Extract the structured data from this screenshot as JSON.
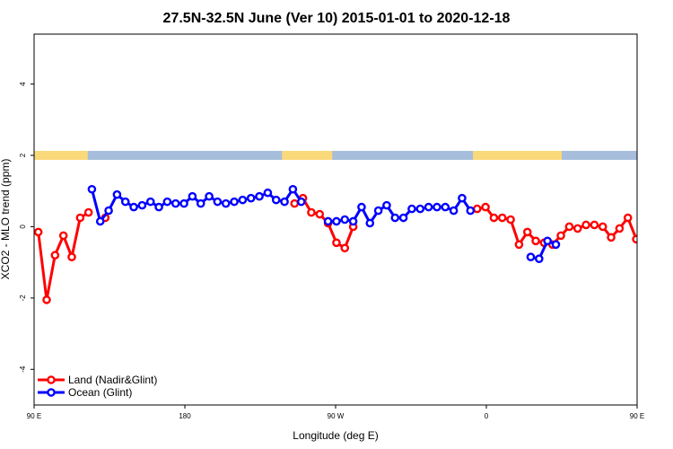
{
  "chart_data": {
    "type": "line",
    "title": "27.5N-32.5N June (Ver 10)   2015-01-01 to 2020-12-18",
    "xlabel": "Longitude (deg E)",
    "ylabel": "XCO2 - MLO trend (ppm)",
    "xlim": [
      90,
      450
    ],
    "ylim": [
      -5,
      5.4
    ],
    "x_ticks": [
      {
        "value": 90,
        "label": "90 E"
      },
      {
        "value": 180,
        "label": "180"
      },
      {
        "value": 270,
        "label": "90 W"
      },
      {
        "value": 360,
        "label": "0"
      },
      {
        "value": 450,
        "label": "90 E"
      },
      {
        "value": 540,
        "label": "180"
      }
    ],
    "y_ticks": [
      {
        "value": -4,
        "label": "-4"
      },
      {
        "value": -2,
        "label": "-2"
      },
      {
        "value": 0,
        "label": "0"
      },
      {
        "value": 2,
        "label": "2"
      },
      {
        "value": 4,
        "label": "4"
      }
    ],
    "grid": false,
    "legend_position": "bottom-left",
    "land_ocean_band": {
      "y_center": 2.0,
      "land_color": "#fad97a",
      "ocean_color": "#a6bddb",
      "land_ranges": [
        [
          90,
          122
        ],
        [
          238,
          268
        ],
        [
          352,
          405
        ],
        [
          467,
          492
        ]
      ]
    },
    "series": [
      {
        "name": "Land (Nadir&Glint)",
        "color": "#ff0000",
        "points": [
          [
            92.5,
            -0.15
          ],
          [
            97.5,
            -2.05
          ],
          [
            102.5,
            -0.8
          ],
          [
            107.5,
            -0.25
          ],
          [
            112.5,
            -0.85
          ],
          [
            117.5,
            0.25
          ],
          [
            122.5,
            0.4
          ],
          null,
          [
            132.5,
            0.25
          ],
          null,
          [
            245.5,
            0.65
          ],
          [
            250.5,
            0.8
          ],
          [
            255.5,
            0.4
          ],
          [
            260.5,
            0.35
          ],
          [
            265.5,
            0.1
          ],
          [
            270.5,
            -0.45
          ],
          [
            275.5,
            -0.6
          ],
          [
            280.5,
            0.0
          ],
          null,
          [
            354.5,
            0.5
          ],
          [
            359.5,
            0.55
          ],
          [
            364.5,
            0.25
          ],
          [
            369.5,
            0.25
          ],
          [
            374.5,
            0.2
          ],
          [
            379.5,
            -0.5
          ],
          [
            384.5,
            -0.15
          ],
          [
            389.5,
            -0.4
          ],
          [
            394.5,
            -0.45
          ],
          [
            399.5,
            -0.5
          ],
          [
            404.5,
            -0.25
          ],
          [
            409.5,
            0.0
          ],
          [
            414.5,
            -0.05
          ],
          [
            419.5,
            0.05
          ],
          [
            424.5,
            0.05
          ],
          [
            429.5,
            0.0
          ],
          [
            434.5,
            -0.3
          ],
          [
            439.5,
            -0.05
          ],
          [
            444.5,
            0.25
          ],
          [
            449.5,
            -0.35
          ],
          [
            454.5,
            -0.3
          ],
          [
            459.5,
            -0.3
          ],
          [
            464.5,
            -0.2
          ],
          [
            469.5,
            -2.05
          ],
          [
            474.5,
            -0.8
          ],
          [
            479.5,
            -0.25
          ],
          [
            484.5,
            -0.85
          ],
          [
            489.5,
            0.25
          ],
          [
            494.5,
            0.4
          ],
          null,
          [
            504.5,
            0.25
          ]
        ]
      },
      {
        "name": "Ocean (Glint)",
        "color": "#0000ff",
        "points": [
          [
            124.5,
            1.05
          ],
          [
            129.5,
            0.15
          ],
          [
            134.5,
            0.45
          ],
          [
            139.5,
            0.9
          ],
          [
            144.5,
            0.7
          ],
          [
            149.5,
            0.55
          ],
          [
            154.5,
            0.6
          ],
          [
            159.5,
            0.7
          ],
          [
            164.5,
            0.55
          ],
          [
            169.5,
            0.7
          ],
          [
            174.5,
            0.65
          ],
          [
            179.5,
            0.65
          ],
          [
            184.5,
            0.85
          ],
          [
            189.5,
            0.65
          ],
          [
            194.5,
            0.85
          ],
          [
            199.5,
            0.7
          ],
          [
            204.5,
            0.65
          ],
          [
            209.5,
            0.7
          ],
          [
            214.5,
            0.75
          ],
          [
            219.5,
            0.8
          ],
          [
            224.5,
            0.85
          ],
          [
            229.5,
            0.95
          ],
          [
            234.5,
            0.75
          ],
          [
            239.5,
            0.7
          ],
          [
            244.5,
            1.05
          ],
          [
            249.5,
            0.7
          ],
          null,
          [
            265.5,
            0.15
          ],
          [
            270.5,
            0.15
          ],
          [
            275.5,
            0.2
          ],
          [
            280.5,
            0.15
          ],
          [
            285.5,
            0.55
          ],
          [
            290.5,
            0.1
          ],
          [
            295.5,
            0.45
          ],
          [
            300.5,
            0.6
          ],
          [
            305.5,
            0.25
          ],
          [
            310.5,
            0.25
          ],
          [
            315.5,
            0.5
          ],
          [
            320.5,
            0.5
          ],
          [
            325.5,
            0.55
          ],
          [
            330.5,
            0.55
          ],
          [
            335.5,
            0.55
          ],
          [
            340.5,
            0.45
          ],
          [
            345.5,
            0.8
          ],
          [
            350.5,
            0.45
          ],
          null,
          [
            386.5,
            -0.85
          ],
          [
            391.5,
            -0.9
          ],
          [
            396.5,
            -0.4
          ],
          [
            401.5,
            -0.5
          ],
          null,
          [
            496.5,
            1.05
          ],
          [
            501.5,
            0.15
          ],
          [
            506.5,
            0.45
          ],
          [
            511.5,
            0.9
          ],
          [
            516.5,
            0.7
          ],
          [
            521.5,
            0.55
          ],
          [
            526.5,
            0.6
          ],
          [
            531.5,
            0.7
          ],
          [
            536.5,
            0.55
          ],
          [
            541.5,
            0.7
          ]
        ]
      }
    ]
  }
}
